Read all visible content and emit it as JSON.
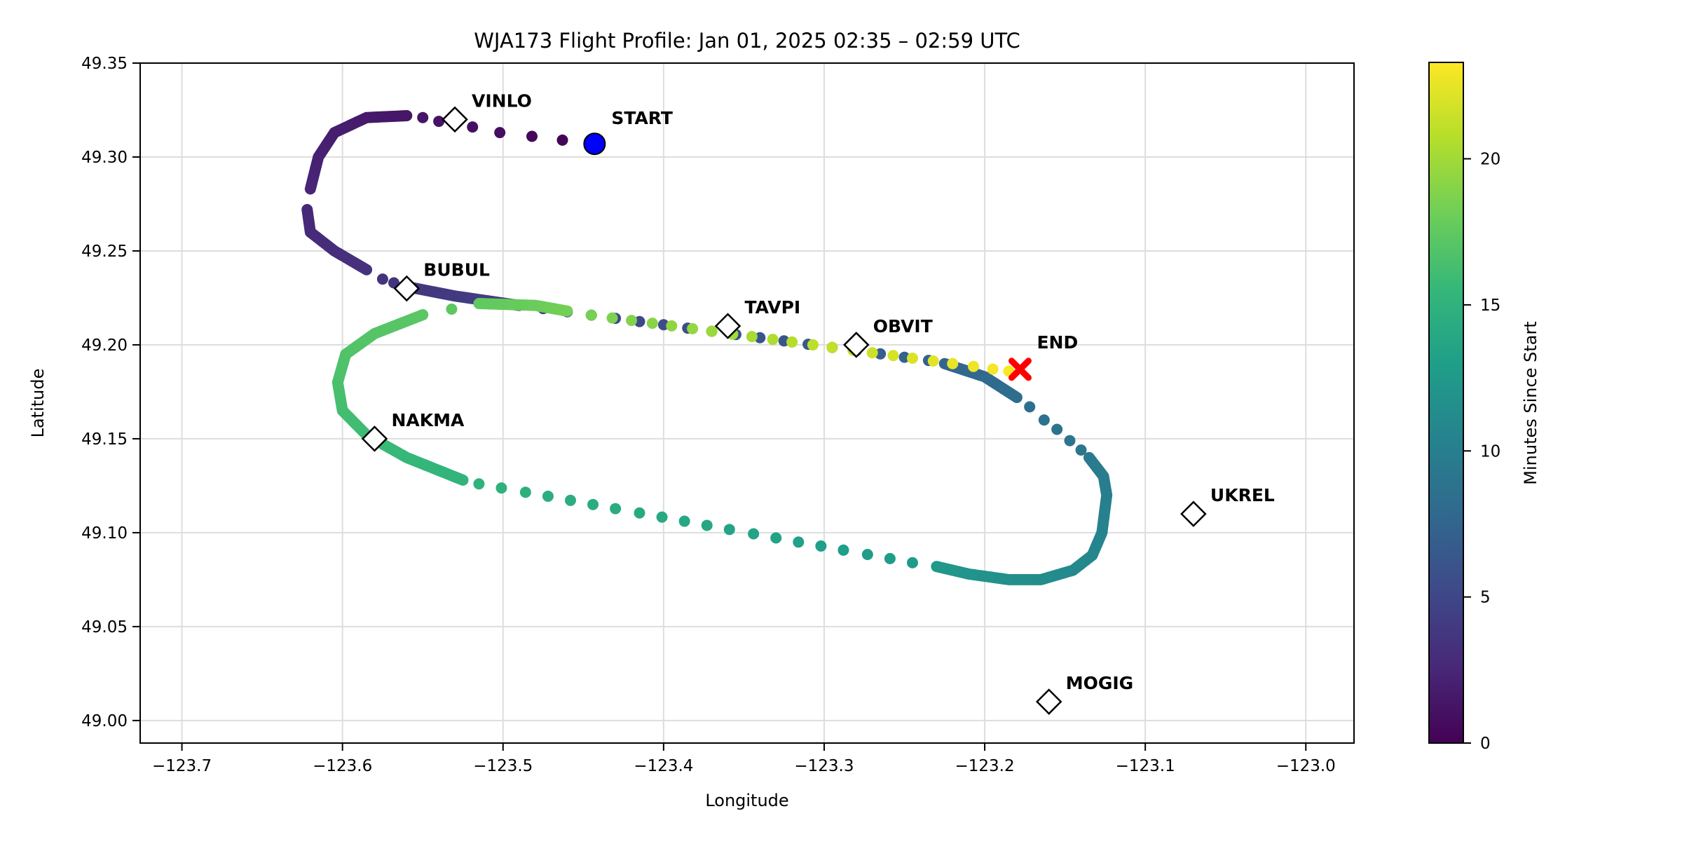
{
  "chart_data": {
    "type": "scatter",
    "title": "WJA173 Flight Profile: Jan 01, 2025 02:35 – 02:59 UTC",
    "xlabel": "Longitude",
    "ylabel": "Latitude",
    "xlim": [
      -123.726,
      -122.97
    ],
    "ylim": [
      48.988,
      49.35
    ],
    "xticks": [
      -123.7,
      -123.6,
      -123.5,
      -123.4,
      -123.3,
      -123.2,
      -123.1,
      -123.0
    ],
    "xtick_labels": [
      "−123.7",
      "−123.6",
      "−123.5",
      "−123.4",
      "−123.3",
      "−123.2",
      "−123.1",
      "−123.0"
    ],
    "yticks": [
      49.0,
      49.05,
      49.1,
      49.15,
      49.2,
      49.25,
      49.3,
      49.35
    ],
    "ytick_labels": [
      "49.00",
      "49.05",
      "49.10",
      "49.15",
      "49.20",
      "49.25",
      "49.30",
      "49.35"
    ],
    "grid": true,
    "colorbar": {
      "label": "Minutes Since Start",
      "colormap": "viridis",
      "range": [
        0,
        23.3
      ],
      "ticks": [
        0,
        5,
        10,
        15,
        20
      ],
      "tick_labels": [
        "0",
        "5",
        "10",
        "15",
        "20"
      ]
    },
    "track": [
      {
        "sampling": "sparse",
        "points": [
          [
            -123.463,
            49.309,
            0.2
          ],
          [
            -123.482,
            49.311,
            0.5
          ],
          [
            -123.502,
            49.313,
            0.8
          ],
          [
            -123.519,
            49.316,
            1.0
          ],
          [
            -123.53,
            49.318,
            1.1
          ],
          [
            -123.54,
            49.319,
            1.2
          ],
          [
            -123.55,
            49.321,
            1.3
          ]
        ]
      },
      {
        "sampling": "dense",
        "points": [
          [
            -123.56,
            49.322,
            1.35
          ],
          [
            -123.585,
            49.321,
            1.6
          ],
          [
            -123.605,
            49.313,
            1.9
          ],
          [
            -123.615,
            49.3,
            2.1
          ],
          [
            -123.62,
            49.283,
            2.4
          ]
        ]
      },
      {
        "sampling": "dense",
        "points": [
          [
            -123.622,
            49.272,
            2.5
          ],
          [
            -123.62,
            49.26,
            2.7
          ],
          [
            -123.605,
            49.25,
            3.0
          ],
          [
            -123.585,
            49.24,
            3.3
          ]
        ]
      },
      {
        "sampling": "sparse",
        "points": [
          [
            -123.575,
            49.235,
            3.45
          ],
          [
            -123.568,
            49.233,
            3.55
          ]
        ]
      },
      {
        "sampling": "dense",
        "points": [
          [
            -123.56,
            49.231,
            3.6
          ],
          [
            -123.53,
            49.226,
            4.0
          ],
          [
            -123.49,
            49.221,
            4.5
          ]
        ]
      },
      {
        "sampling": "sparse",
        "points": [
          [
            -123.475,
            49.2193,
            4.6
          ],
          [
            -123.46,
            49.2176,
            4.77
          ],
          [
            -123.445,
            49.2158,
            4.94
          ],
          [
            -123.43,
            49.2141,
            5.11
          ],
          [
            -123.415,
            49.2124,
            5.28
          ],
          [
            -123.4,
            49.2107,
            5.45
          ],
          [
            -123.385,
            49.2089,
            5.62
          ],
          [
            -123.37,
            49.2072,
            5.79
          ],
          [
            -123.355,
            49.2055,
            5.96
          ],
          [
            -123.34,
            49.2038,
            6.13
          ],
          [
            -123.325,
            49.2021,
            6.3
          ],
          [
            -123.31,
            49.2003,
            6.47
          ],
          [
            -123.295,
            49.1986,
            6.64
          ],
          [
            -123.28,
            49.1969,
            6.81
          ],
          [
            -123.265,
            49.1952,
            6.98
          ],
          [
            -123.25,
            49.1934,
            7.15
          ],
          [
            -123.235,
            49.1917,
            7.3
          ]
        ]
      },
      {
        "sampling": "dense",
        "points": [
          [
            -123.225,
            49.19,
            7.5
          ],
          [
            -123.2,
            49.183,
            7.9
          ],
          [
            -123.18,
            49.172,
            8.3
          ]
        ]
      },
      {
        "sampling": "sparse",
        "points": [
          [
            -123.172,
            49.167,
            8.5
          ],
          [
            -123.163,
            49.16,
            8.7
          ],
          [
            -123.155,
            49.155,
            8.9
          ],
          [
            -123.147,
            49.149,
            9.1
          ],
          [
            -123.14,
            49.144,
            9.3
          ]
        ]
      },
      {
        "sampling": "dense",
        "points": [
          [
            -123.135,
            49.14,
            9.5
          ],
          [
            -123.126,
            49.13,
            9.8
          ],
          [
            -123.124,
            49.12,
            10.0
          ],
          [
            -123.127,
            49.1,
            10.4
          ],
          [
            -123.133,
            49.088,
            10.7
          ],
          [
            -123.145,
            49.08,
            11.0
          ],
          [
            -123.165,
            49.075,
            11.3
          ],
          [
            -123.185,
            49.075,
            11.6
          ],
          [
            -123.21,
            49.078,
            12.0
          ],
          [
            -123.23,
            49.082,
            12.4
          ]
        ]
      },
      {
        "sampling": "sparse",
        "points": [
          [
            -123.245,
            49.084,
            12.6
          ],
          [
            -123.259,
            49.0862,
            12.73
          ],
          [
            -123.273,
            49.0884,
            12.85
          ],
          [
            -123.288,
            49.0907,
            12.98
          ],
          [
            -123.302,
            49.0929,
            13.1
          ],
          [
            -123.316,
            49.095,
            13.23
          ],
          [
            -123.33,
            49.0972,
            13.36
          ],
          [
            -123.344,
            49.0994,
            13.48
          ],
          [
            -123.359,
            49.1017,
            13.61
          ],
          [
            -123.373,
            49.1039,
            13.73
          ],
          [
            -123.387,
            49.1061,
            13.86
          ],
          [
            -123.401,
            49.1083,
            13.99
          ],
          [
            -123.415,
            49.1105,
            14.11
          ],
          [
            -123.43,
            49.1128,
            14.24
          ],
          [
            -123.444,
            49.115,
            14.36
          ],
          [
            -123.458,
            49.1172,
            14.49
          ],
          [
            -123.472,
            49.1194,
            14.62
          ],
          [
            -123.486,
            49.1215,
            14.74
          ],
          [
            -123.501,
            49.1238,
            14.87
          ],
          [
            -123.515,
            49.126,
            15.0
          ]
        ]
      },
      {
        "sampling": "dense",
        "points": [
          [
            -123.525,
            49.128,
            15.1
          ],
          [
            -123.56,
            49.14,
            15.5
          ],
          [
            -123.585,
            49.152,
            15.9
          ],
          [
            -123.6,
            49.165,
            16.2
          ],
          [
            -123.603,
            49.18,
            16.5
          ],
          [
            -123.598,
            49.195,
            16.8
          ],
          [
            -123.58,
            49.206,
            17.0
          ],
          [
            -123.55,
            49.216,
            17.2
          ]
        ]
      },
      {
        "sampling": "sparse",
        "points": [
          [
            -123.532,
            49.219,
            17.35
          ]
        ]
      },
      {
        "sampling": "dense",
        "points": [
          [
            -123.515,
            49.222,
            17.5
          ],
          [
            -123.48,
            49.221,
            17.9
          ],
          [
            -123.46,
            49.218,
            18.3
          ]
        ]
      },
      {
        "sampling": "sparse",
        "points": [
          [
            -123.445,
            49.2158,
            18.4
          ],
          [
            -123.432,
            49.2143,
            18.63
          ],
          [
            -123.42,
            49.213,
            18.86
          ],
          [
            -123.407,
            49.2115,
            19.09
          ],
          [
            -123.395,
            49.2101,
            19.32
          ],
          [
            -123.382,
            49.2086,
            19.55
          ],
          [
            -123.37,
            49.2072,
            19.78
          ],
          [
            -123.357,
            49.2057,
            20.01
          ],
          [
            -123.345,
            49.2044,
            20.24
          ],
          [
            -123.332,
            49.2029,
            20.47
          ],
          [
            -123.32,
            49.2015,
            20.7
          ],
          [
            -123.307,
            49.2,
            20.93
          ],
          [
            -123.295,
            49.1986,
            21.16
          ],
          [
            -123.282,
            49.1971,
            21.39
          ],
          [
            -123.27,
            49.1958,
            21.62
          ],
          [
            -123.257,
            49.1943,
            21.85
          ],
          [
            -123.245,
            49.1929,
            22.08
          ],
          [
            -123.232,
            49.1914,
            22.31
          ],
          [
            -123.22,
            49.19,
            22.54
          ],
          [
            -123.207,
            49.1885,
            22.77
          ],
          [
            -123.195,
            49.1871,
            23.0
          ],
          [
            -123.185,
            49.186,
            23.2
          ]
        ]
      }
    ],
    "waypoints": [
      {
        "name": "VINLO",
        "lon": -123.53,
        "lat": 49.32
      },
      {
        "name": "BUBUL",
        "lon": -123.56,
        "lat": 49.23
      },
      {
        "name": "TAVPI",
        "lon": -123.36,
        "lat": 49.21
      },
      {
        "name": "OBVIT",
        "lon": -123.28,
        "lat": 49.2
      },
      {
        "name": "NAKMA",
        "lon": -123.58,
        "lat": 49.15
      },
      {
        "name": "UKREL",
        "lon": -123.07,
        "lat": 49.11
      },
      {
        "name": "MOGIG",
        "lon": -123.16,
        "lat": 49.01
      }
    ],
    "start": {
      "label": "START",
      "lon": -123.443,
      "lat": 49.307,
      "color": "#0000ff"
    },
    "end": {
      "label": "END",
      "lon": -123.178,
      "lat": 49.187,
      "color": "#ff0000"
    }
  }
}
